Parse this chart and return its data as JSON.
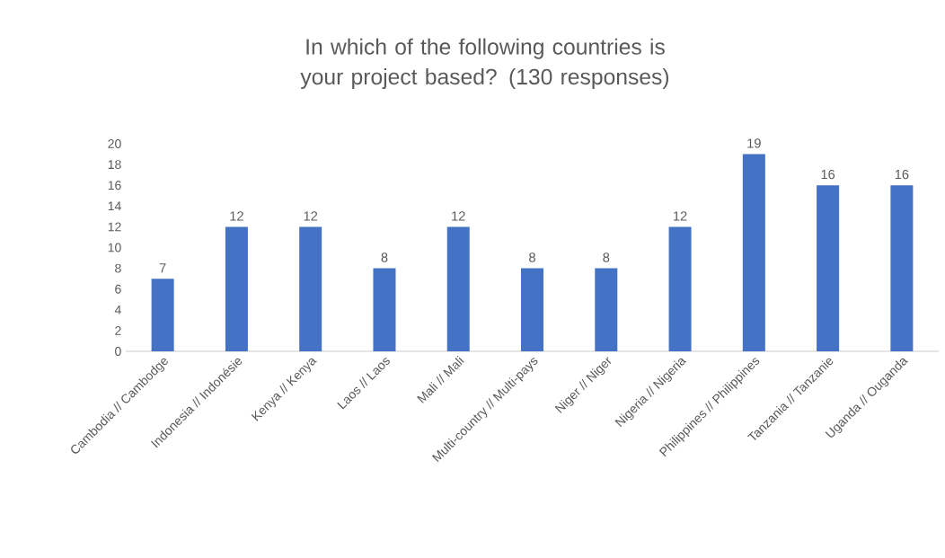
{
  "chart_data": {
    "type": "bar",
    "title": "In which of the following countries is your project based? (130 responses)",
    "categories": [
      "Cambodia // Cambodge",
      "Indonesia // Indonésie",
      "Kenya // Kenya",
      "Laos // Laos",
      "Mali // Mali",
      "Multi-country // Multi-pays",
      "Niger // Niger",
      "Nigeria // Nigeria",
      "Philippines // Philippines",
      "Tanzania // Tanzanie",
      "Uganda // Ouganda"
    ],
    "values": [
      7,
      12,
      12,
      8,
      12,
      8,
      8,
      12,
      19,
      16,
      16
    ],
    "color": "#4472c4",
    "ylim": [
      0,
      20
    ],
    "yticks": [
      0,
      2,
      4,
      6,
      8,
      10,
      12,
      14,
      16,
      18,
      20
    ],
    "data_labels": true
  }
}
